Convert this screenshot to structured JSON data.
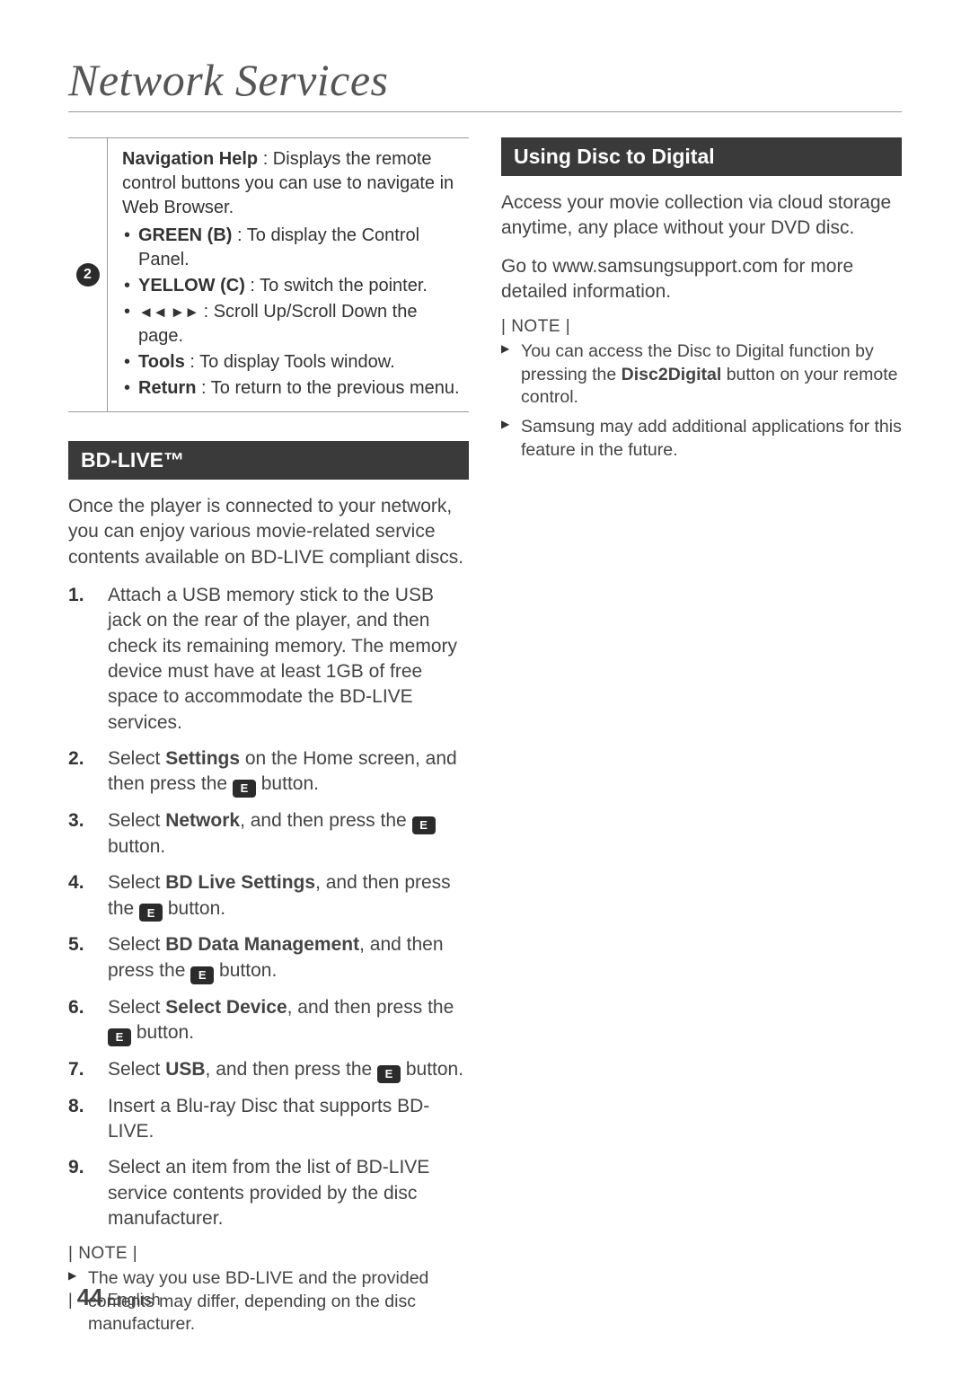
{
  "page": {
    "title": "Network Services",
    "number": "44",
    "lang": "English"
  },
  "callout": {
    "num": "2",
    "lead_bold": "Navigation Help",
    "lead_rest": " : Displays the remote control buttons you can use to navigate in Web Browser.",
    "items": [
      {
        "bold": "GREEN (B)",
        "rest": " : To display the Control Panel."
      },
      {
        "bold": "YELLOW (C)",
        "rest": " : To switch the pointer."
      },
      {
        "glyph": "◄◄  ►►",
        "rest": " : Scroll Up/Scroll Down the page."
      },
      {
        "bold": "Tools",
        "rest": " : To display Tools window."
      },
      {
        "bold": "Return",
        "rest": " : To return to the previous menu."
      }
    ]
  },
  "bdlive": {
    "header": "BD-LIVE™",
    "intro": "Once the player is connected to your network, you can enjoy various movie-related service contents available on BD-LIVE compliant discs.",
    "steps": {
      "s1": "Attach a USB memory stick to the USB jack on the rear of the player, and then check its remaining memory. The memory device must have at least 1GB of free space to accommodate the BD-LIVE services.",
      "s2_a": "Select ",
      "s2_b": "Settings",
      "s2_c": " on the Home screen, and then press the ",
      "s2_d": " button.",
      "s3_a": "Select ",
      "s3_b": "Network",
      "s3_c": ", and then press the ",
      "s3_d": " button.",
      "s4_a": "Select ",
      "s4_b": "BD Live Settings",
      "s4_c": ", and then press the ",
      "s4_d": " button.",
      "s5_a": "Select ",
      "s5_b": "BD Data Management",
      "s5_c": ", and then press the ",
      "s5_d": " button.",
      "s6_a": "Select ",
      "s6_b": "Select Device",
      "s6_c": ", and then press the ",
      "s6_d": " button.",
      "s7_a": "Select ",
      "s7_b": "USB",
      "s7_c": ", and then press the ",
      "s7_d": " button.",
      "s8": "Insert a Blu-ray Disc that supports BD-LIVE.",
      "s9": "Select an item from the list of BD-LIVE service contents provided by the disc manufacturer."
    },
    "note_label": "| NOTE |",
    "note1": "The way you use BD-LIVE and the provided contents may differ, depending on the disc manufacturer."
  },
  "d2d": {
    "header": "Using Disc to Digital",
    "p1": "Access your movie collection via cloud storage anytime, any place without your DVD disc.",
    "p2": "Go to www.samsungsupport.com for more detailed information.",
    "note_label": "| NOTE |",
    "note1_a": "You can access the Disc to Digital function by pressing the ",
    "note1_b": "Disc2Digital",
    "note1_c": " button on your remote control.",
    "note2": "Samsung may add additional applications for this feature in the future."
  },
  "icons": {
    "enter": "E"
  }
}
